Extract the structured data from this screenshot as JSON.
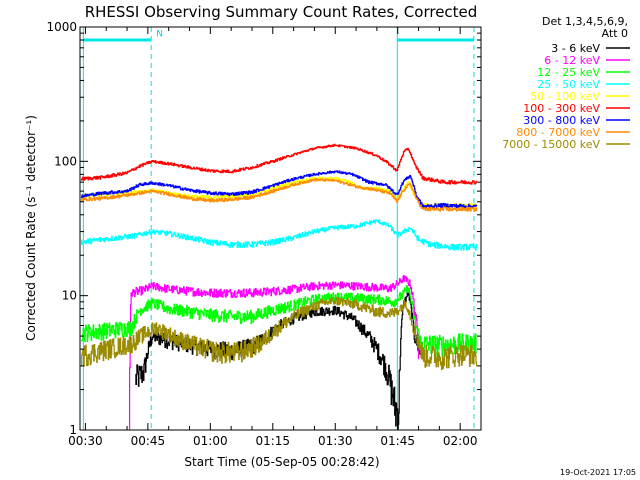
{
  "chart_data": {
    "type": "line",
    "title": "RHESSI Observing Summary Count Rates, Corrected",
    "xlabel": "Start Time (05-Sep-05 00:28:42)",
    "ylabel": "Corrected Count Rate (s⁻¹ detector⁻¹)",
    "footer_date": "19-Oct-2021 17:05",
    "legend_header": [
      "Det 1,3,4,5,6,9,",
      "Att 0"
    ],
    "x_unit": "minutes since 00:00 UT",
    "xlim": [
      28.7,
      125
    ],
    "ylim": [
      1,
      1000
    ],
    "y_scale": "log",
    "grid": false,
    "legend_position": "right",
    "x_ticks": [
      {
        "v": 30,
        "label": "00:30"
      },
      {
        "v": 45,
        "label": "00:45"
      },
      {
        "v": 60,
        "label": "01:00"
      },
      {
        "v": 75,
        "label": "01:15"
      },
      {
        "v": 90,
        "label": "01:30"
      },
      {
        "v": 105,
        "label": "01:45"
      },
      {
        "v": 120,
        "label": "02:00"
      }
    ],
    "y_ticks": [
      {
        "v": 1,
        "label": "1"
      },
      {
        "v": 10,
        "label": "10"
      },
      {
        "v": 100,
        "label": "100"
      },
      {
        "v": 1000,
        "label": "1000"
      }
    ],
    "markers": {
      "night_lines": [
        29.5,
        45.8,
        104.9,
        123.3
      ],
      "flag_bars": [
        {
          "x0": 29.5,
          "x1": 45.8,
          "y": 800,
          "label": ""
        },
        {
          "x0": 104.9,
          "x1": 123.3,
          "y": 800,
          "label": ""
        }
      ],
      "flag_letter": {
        "x": 47.0,
        "y": 850,
        "text": "N"
      }
    },
    "series": [
      {
        "name": "3 - 6 keV",
        "color": "#000000",
        "noise": 0.6,
        "points": [
          [
            42,
            2.4
          ],
          [
            44,
            2.7
          ],
          [
            46,
            5.0
          ],
          [
            50,
            4.6
          ],
          [
            55,
            4.3
          ],
          [
            60,
            4.0
          ],
          [
            65,
            3.9
          ],
          [
            70,
            4.2
          ],
          [
            73,
            4.8
          ],
          [
            76,
            5.8
          ],
          [
            80,
            6.8
          ],
          [
            85,
            7.6
          ],
          [
            90,
            7.8
          ],
          [
            94,
            6.8
          ],
          [
            98,
            5.0
          ],
          [
            102,
            3.0
          ],
          [
            104.3,
            1.5
          ],
          [
            105.2,
            1.3
          ],
          [
            106.3,
            8.5
          ],
          [
            107.5,
            10.5
          ],
          [
            109,
            5.0
          ],
          [
            110.5,
            3.6
          ]
        ]
      },
      {
        "name": "6 - 12 keV",
        "color": "#ff00ff",
        "noise": 0.8,
        "points": [
          [
            40.5,
            1.0
          ],
          [
            41.0,
            10.5
          ],
          [
            44,
            11.0
          ],
          [
            46,
            11.8
          ],
          [
            50,
            11.2
          ],
          [
            55,
            10.8
          ],
          [
            60,
            10.5
          ],
          [
            65,
            10.5
          ],
          [
            70,
            10.5
          ],
          [
            75,
            10.8
          ],
          [
            80,
            11.2
          ],
          [
            85,
            11.8
          ],
          [
            90,
            12.0
          ],
          [
            95,
            11.8
          ],
          [
            100,
            11.5
          ],
          [
            103,
            11.3
          ],
          [
            105,
            12.3
          ],
          [
            106.5,
            13.5
          ],
          [
            108,
            12.2
          ],
          [
            109,
            8.0
          ],
          [
            110,
            4.0
          ]
        ]
      },
      {
        "name": "12 - 25 keV",
        "color": "#00ff00",
        "noise": 0.8,
        "points": [
          [
            29,
            5.3
          ],
          [
            35,
            5.5
          ],
          [
            41,
            5.8
          ],
          [
            43,
            7.8
          ],
          [
            46,
            8.8
          ],
          [
            50,
            8.0
          ],
          [
            55,
            7.6
          ],
          [
            60,
            7.2
          ],
          [
            65,
            7.0
          ],
          [
            70,
            7.0
          ],
          [
            75,
            7.8
          ],
          [
            80,
            8.5
          ],
          [
            85,
            9.4
          ],
          [
            90,
            9.8
          ],
          [
            95,
            9.6
          ],
          [
            100,
            9.4
          ],
          [
            104,
            9.0
          ],
          [
            106,
            10.0
          ],
          [
            107.5,
            11.5
          ],
          [
            109,
            6.5
          ],
          [
            110.5,
            4.4
          ],
          [
            115,
            4.3
          ],
          [
            120,
            4.4
          ],
          [
            124,
            4.4
          ]
        ]
      },
      {
        "name": "25 - 50 keV",
        "color": "#00ffff",
        "noise": 1.2,
        "points": [
          [
            29,
            25
          ],
          [
            33,
            26
          ],
          [
            38,
            27
          ],
          [
            42,
            28
          ],
          [
            46,
            30
          ],
          [
            50,
            29
          ],
          [
            55,
            27
          ],
          [
            60,
            25
          ],
          [
            65,
            24
          ],
          [
            70,
            24
          ],
          [
            75,
            25
          ],
          [
            80,
            27
          ],
          [
            85,
            30
          ],
          [
            90,
            32
          ],
          [
            95,
            33
          ],
          [
            100,
            36
          ],
          [
            103,
            33
          ],
          [
            104.8,
            28
          ],
          [
            106.5,
            30
          ],
          [
            108,
            32
          ],
          [
            110,
            26
          ],
          [
            113,
            24
          ],
          [
            118,
            23
          ],
          [
            124,
            23
          ]
        ]
      },
      {
        "name": "50 - 100 keV",
        "color": "#ffff00",
        "noise": 1.5,
        "points": [
          [
            29,
            55
          ],
          [
            35,
            57
          ],
          [
            40,
            58
          ],
          [
            43,
            60
          ],
          [
            46,
            61
          ],
          [
            50,
            58
          ],
          [
            55,
            55
          ],
          [
            60,
            54
          ],
          [
            65,
            55
          ],
          [
            70,
            57
          ],
          [
            75,
            63
          ],
          [
            80,
            70
          ],
          [
            85,
            75
          ],
          [
            90,
            75
          ],
          [
            93,
            71
          ],
          [
            96,
            63
          ],
          [
            100,
            63
          ],
          [
            103,
            60
          ],
          [
            104.8,
            52
          ],
          [
            106,
            60
          ],
          [
            107.5,
            70
          ],
          [
            109,
            55
          ],
          [
            111,
            47
          ],
          [
            116,
            47
          ],
          [
            124,
            47
          ]
        ]
      },
      {
        "name": "100 - 300 keV",
        "color": "#ff0000",
        "noise": 2.2,
        "points": [
          [
            29,
            74
          ],
          [
            34,
            76
          ],
          [
            40,
            82
          ],
          [
            43,
            92
          ],
          [
            46,
            100
          ],
          [
            50,
            96
          ],
          [
            55,
            90
          ],
          [
            60,
            85
          ],
          [
            65,
            84
          ],
          [
            70,
            90
          ],
          [
            75,
            100
          ],
          [
            80,
            112
          ],
          [
            85,
            125
          ],
          [
            90,
            132
          ],
          [
            95,
            125
          ],
          [
            100,
            110
          ],
          [
            103,
            95
          ],
          [
            104.8,
            85
          ],
          [
            106.5,
            118
          ],
          [
            107.5,
            125
          ],
          [
            109,
            95
          ],
          [
            111,
            75
          ],
          [
            116,
            70
          ],
          [
            124,
            70
          ]
        ]
      },
      {
        "name": "300 - 800 keV",
        "color": "#0000ff",
        "noise": 1.6,
        "points": [
          [
            29,
            55
          ],
          [
            34,
            58
          ],
          [
            40,
            60
          ],
          [
            43,
            67
          ],
          [
            46,
            69
          ],
          [
            50,
            66
          ],
          [
            55,
            61
          ],
          [
            60,
            58
          ],
          [
            65,
            57
          ],
          [
            70,
            59
          ],
          [
            75,
            66
          ],
          [
            80,
            74
          ],
          [
            85,
            80
          ],
          [
            90,
            84
          ],
          [
            94,
            80
          ],
          [
            98,
            70
          ],
          [
            102,
            67
          ],
          [
            104.8,
            56
          ],
          [
            106.5,
            72
          ],
          [
            108,
            78
          ],
          [
            109.5,
            55
          ],
          [
            111,
            46
          ],
          [
            116,
            47
          ],
          [
            124,
            46
          ]
        ]
      },
      {
        "name": "800 - 7000 keV",
        "color": "#ff8c00",
        "noise": 1.5,
        "points": [
          [
            29,
            52
          ],
          [
            34,
            53
          ],
          [
            40,
            56
          ],
          [
            43,
            58
          ],
          [
            46,
            60
          ],
          [
            50,
            57
          ],
          [
            55,
            53
          ],
          [
            60,
            51
          ],
          [
            65,
            52
          ],
          [
            70,
            54
          ],
          [
            75,
            60
          ],
          [
            80,
            67
          ],
          [
            85,
            73
          ],
          [
            90,
            72
          ],
          [
            95,
            65
          ],
          [
            100,
            61
          ],
          [
            103,
            58
          ],
          [
            104.8,
            50
          ],
          [
            106.5,
            62
          ],
          [
            108,
            68
          ],
          [
            109.5,
            52
          ],
          [
            111,
            44
          ],
          [
            116,
            44
          ],
          [
            124,
            44
          ]
        ]
      },
      {
        "name": "7000 - 15000 keV",
        "color": "#9a8a00",
        "noise": 0.7,
        "points": [
          [
            29,
            3.6
          ],
          [
            35,
            4.0
          ],
          [
            41,
            4.4
          ],
          [
            44,
            5.2
          ],
          [
            47,
            5.8
          ],
          [
            52,
            4.8
          ],
          [
            57,
            4.2
          ],
          [
            62,
            3.8
          ],
          [
            67,
            3.8
          ],
          [
            72,
            4.4
          ],
          [
            77,
            6.0
          ],
          [
            82,
            7.6
          ],
          [
            87,
            8.8
          ],
          [
            90,
            9.2
          ],
          [
            95,
            8.6
          ],
          [
            100,
            7.6
          ],
          [
            104,
            7.4
          ],
          [
            107,
            8.8
          ],
          [
            109,
            5.5
          ],
          [
            111,
            3.6
          ],
          [
            116,
            3.5
          ],
          [
            120,
            3.7
          ],
          [
            124,
            3.6
          ]
        ]
      }
    ]
  }
}
